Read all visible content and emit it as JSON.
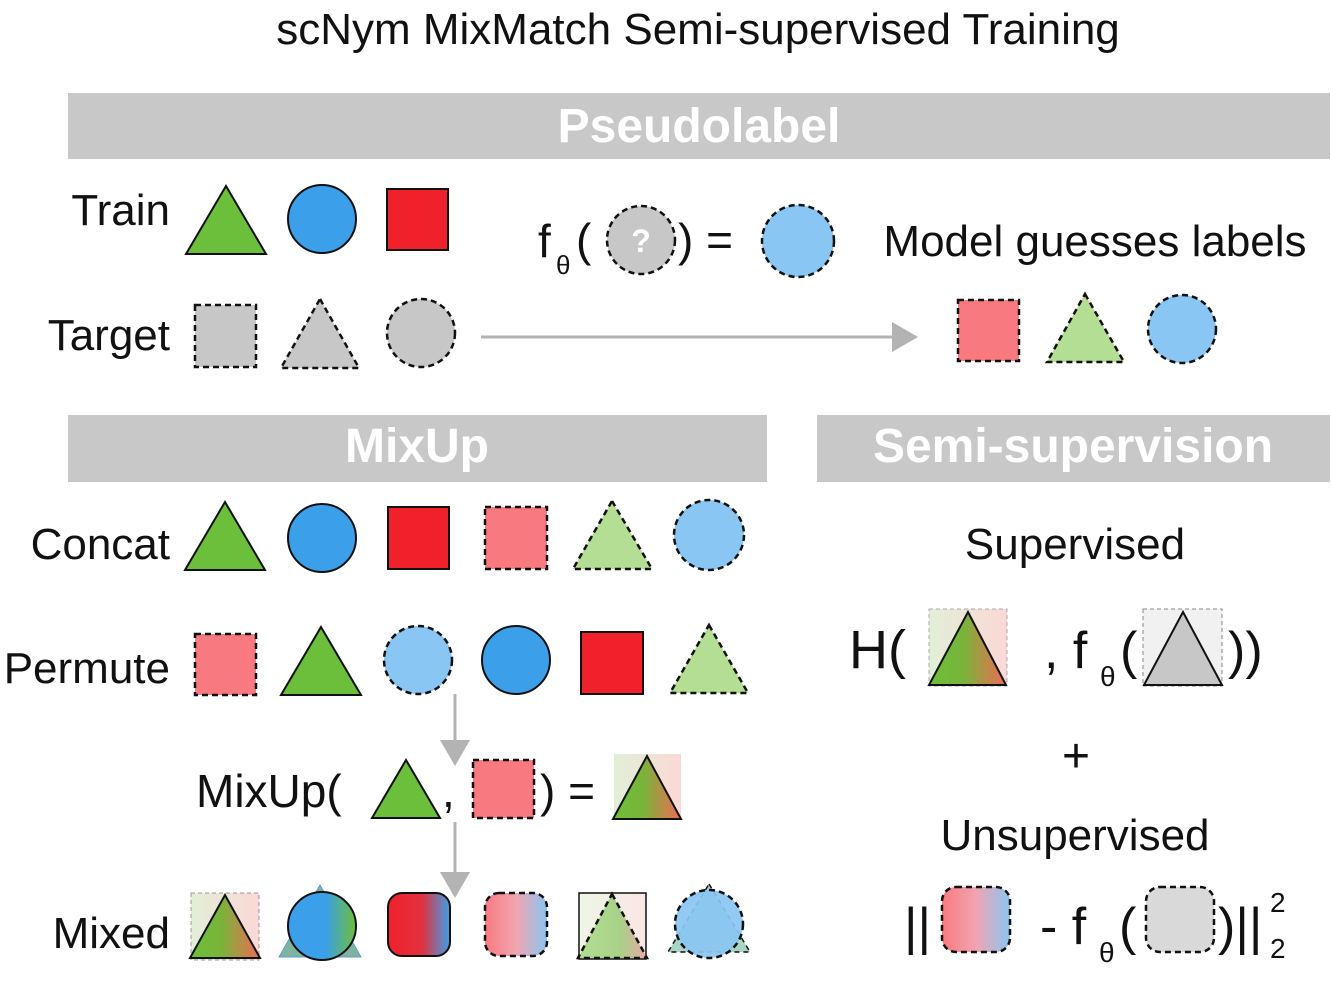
{
  "title": "scNym MixMatch Semi-supervised Training",
  "sections": {
    "pseudolabel": "Pseudolabel",
    "mixup": "MixUp",
    "semisupervision": "Semi-supervision"
  },
  "pseudolabel": {
    "train_label": "Train",
    "target_label": "Target",
    "f_symbol": "f",
    "theta": "θ",
    "open_paren": "(",
    "question": "?",
    "close_eq": ") =",
    "guess_text": "Model guesses labels"
  },
  "mixup": {
    "concat_label": "Concat",
    "permute_label": "Permute",
    "mixup_func": "MixUp(",
    "comma": ",",
    "close_eq": ") =",
    "mixed_label": "Mixed"
  },
  "semisupervision": {
    "supervised": "Supervised",
    "H_open": "H(",
    "comma_f": ", f",
    "theta": "θ",
    "open_paren": "(",
    "close_parens": "))",
    "plus": "+",
    "unsupervised": "Unsupervised",
    "norm_open": "||",
    "minus_f": "- f",
    "close_norm": ")||",
    "sup": "2",
    "sub": "2"
  },
  "colors": {
    "header_bg": "#c8c8c8",
    "green": "#6cbf3a",
    "blue": "#3b9fea",
    "red": "#f1212b",
    "light_red": "#f87a80",
    "light_green": "#b4de93",
    "light_blue": "#8ac6f3",
    "gray": "#c7c7c7",
    "arrow": "#b3b3b3"
  }
}
